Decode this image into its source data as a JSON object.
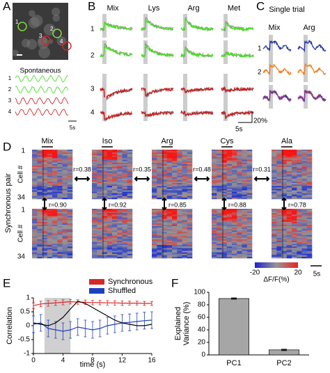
{
  "panels": {
    "A": {
      "label": "A",
      "cells": [
        "1",
        "2",
        "3",
        "4"
      ],
      "trace_title": "Spontaneous",
      "trace_labels": [
        "1",
        "2",
        "3",
        "4"
      ],
      "scale": "5s"
    },
    "B": {
      "label": "B",
      "odors": [
        "Mix",
        "Lys",
        "Arg",
        "Met"
      ],
      "rows": [
        "1",
        "2",
        "3",
        "4"
      ],
      "scale_time": "5s",
      "scale_amp": "20%"
    },
    "C": {
      "label": "C",
      "title": "Single trial",
      "odors": [
        "Mix",
        "Arg"
      ],
      "rows": [
        "1",
        "2"
      ]
    },
    "D": {
      "label": "D",
      "odors": [
        "Mix",
        "Iso",
        "Arg",
        "Cys",
        "Ala"
      ],
      "y_label": "Cell #",
      "y_ticks": [
        "1",
        "34"
      ],
      "pair_label": "Synchronous pair",
      "r_between": [
        "r=0.38",
        "r=0.35",
        "r=0.48",
        "r=0.31"
      ],
      "r_within": [
        "r=0.90",
        "r=0.92",
        "r=0.85",
        "r=0.88",
        "r=0.78"
      ],
      "colorbar_min": "-20",
      "colorbar_max": "20",
      "colorbar_label": "ΔF/F(%)",
      "scale": "5s"
    },
    "E": {
      "label": "E"
    },
    "F": {
      "label": "F"
    }
  },
  "chart_data": [
    {
      "type": "line",
      "xlabel": "time (s)",
      "ylabel": "Correlation",
      "x": [
        0,
        1,
        2,
        3,
        4,
        5,
        6,
        7,
        8,
        9,
        10,
        11,
        12,
        13,
        14,
        15,
        16
      ],
      "series": [
        {
          "name": "Synchronous",
          "color": "#d62728",
          "values": [
            0.72,
            0.78,
            0.8,
            0.82,
            0.84,
            0.86,
            0.85,
            0.84,
            0.83,
            0.83,
            0.82,
            0.82,
            0.81,
            0.81,
            0.81,
            0.8,
            0.8
          ],
          "errors": [
            0.1,
            0.1,
            0.1,
            0.09,
            0.09,
            0.08,
            0.08,
            0.08,
            0.08,
            0.08,
            0.08,
            0.08,
            0.08,
            0.07,
            0.07,
            0.07,
            0.07
          ]
        },
        {
          "name": "Shuffled",
          "color": "#1f3fbf",
          "values": [
            0.05,
            0.1,
            -0.1,
            -0.15,
            -0.2,
            -0.15,
            -0.05,
            -0.1,
            -0.15,
            -0.1,
            0,
            0.05,
            0.1,
            0.12,
            0.15,
            0.18,
            0.2
          ],
          "errors": [
            0.3,
            0.3,
            0.3,
            0.3,
            0.3,
            0.3,
            0.3,
            0.3,
            0.3,
            0.3,
            0.3,
            0.3,
            0.3,
            0.3,
            0.3,
            0.3,
            0.3
          ]
        },
        {
          "color": "#000000",
          "values": [
            0.1,
            0.05,
            0.0,
            0.1,
            0.3,
            0.6,
            0.88,
            0.8,
            0.65,
            0.5,
            0.35,
            0.2,
            0.1,
            0.05,
            0.0,
            0.0,
            0.05
          ]
        }
      ],
      "highlight_x": [
        1.5,
        5
      ],
      "xlim": [
        0,
        16
      ],
      "xticks": [
        0,
        4,
        8,
        12,
        16
      ],
      "ylim": [
        -1,
        1
      ],
      "yticks": [
        -1,
        -0.5,
        0,
        0.5,
        1
      ]
    },
    {
      "type": "bar",
      "ylabel_lines": [
        "Explained",
        "Variance (%)"
      ],
      "categories": [
        "PC1",
        "PC2"
      ],
      "values": [
        90,
        8
      ],
      "errors": [
        1,
        1
      ],
      "color": "#a6a6a6",
      "ylim": [
        0,
        100
      ],
      "yticks": [
        0,
        20,
        40,
        60,
        80,
        100
      ]
    }
  ]
}
